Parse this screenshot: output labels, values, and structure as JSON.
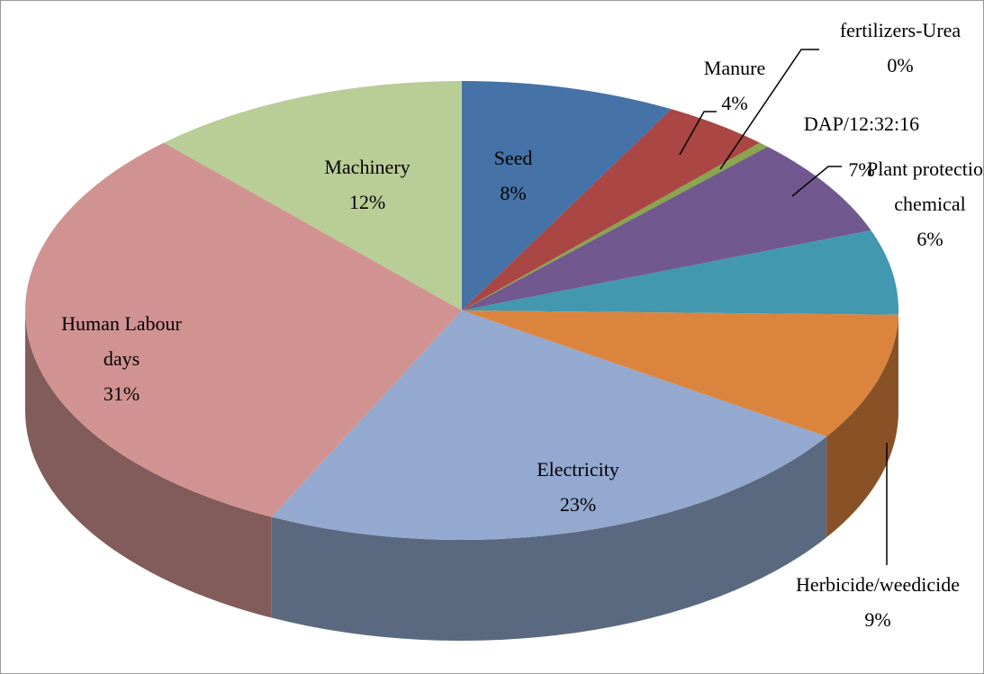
{
  "chart_data": {
    "type": "pie3d",
    "categories": [
      "Seed",
      "Manure",
      "fertilizers-Urea",
      "DAP/12:32:16",
      "Plant protection chemical",
      "Herbicide/weedicide",
      "Electricity",
      "Human Labour days",
      "Machinery"
    ],
    "values": [
      8,
      4,
      0.4,
      7,
      6,
      9,
      23,
      31,
      12
    ],
    "value_labels": [
      "8%",
      "4%",
      "0%",
      "7%",
      "6%",
      "9%",
      "23%",
      "31%",
      "12%"
    ],
    "colors": [
      "#4572a7",
      "#aa4643",
      "#89a54e",
      "#71588f",
      "#4198af",
      "#db843d",
      "#93a9cf",
      "#d19392",
      "#b9cd96"
    ]
  }
}
